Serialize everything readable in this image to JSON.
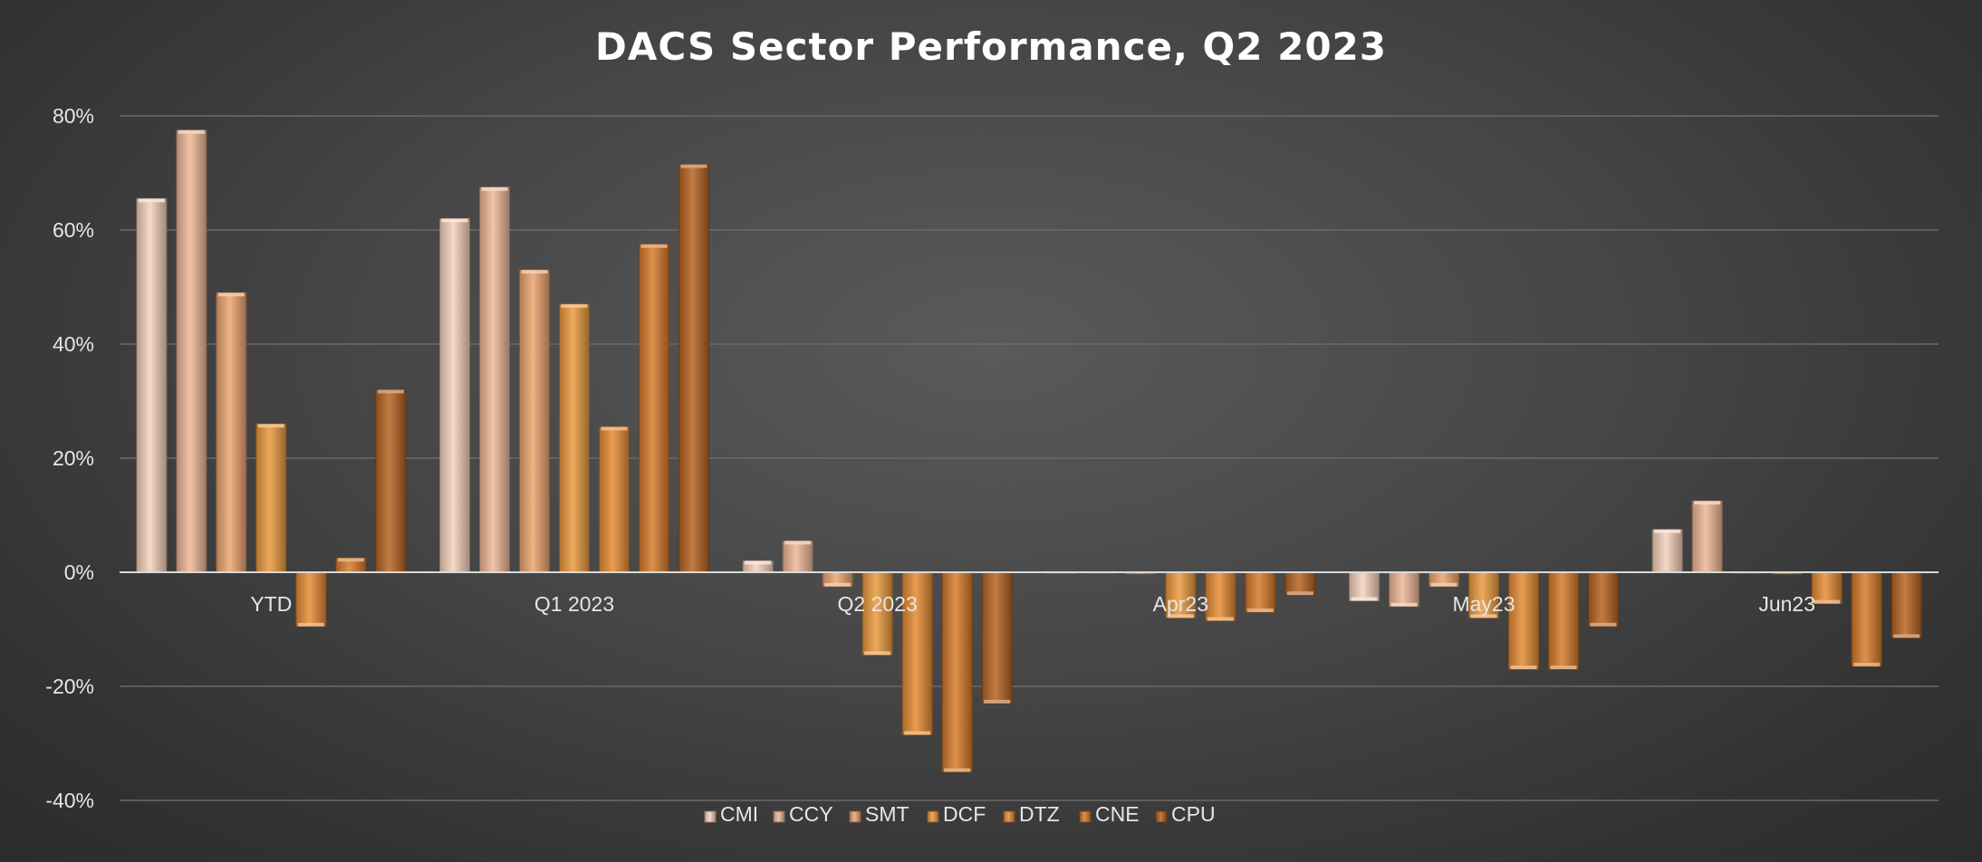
{
  "chart_data": {
    "type": "bar",
    "title": "DACS Sector Performance, Q2 2023",
    "xlabel": "",
    "ylabel": "",
    "ylim": [
      -40,
      80
    ],
    "yticks": [
      80,
      60,
      40,
      20,
      0,
      -20,
      -40
    ],
    "ytick_labels": [
      "80%",
      "60%",
      "40%",
      "20%",
      "0%",
      "-20%",
      "-40%"
    ],
    "grid": true,
    "legend_position": "bottom",
    "categories": [
      "YTD",
      "Q1 2023",
      "Q2 2023",
      "Apr23",
      "May23",
      "Jun23"
    ],
    "series": [
      {
        "name": "CMI",
        "color": "#f6d2bd",
        "values": [
          65.5,
          62,
          2,
          0,
          -5,
          7.5
        ]
      },
      {
        "name": "CCY",
        "color": "#efb898",
        "values": [
          77.5,
          67.5,
          5.5,
          0,
          -6,
          12.5
        ]
      },
      {
        "name": "SMT",
        "color": "#eda56f",
        "values": [
          49,
          53,
          -2.5,
          -0.3,
          -2.5,
          0
        ]
      },
      {
        "name": "DCF",
        "color": "#eb9b3f",
        "values": [
          26,
          47,
          -14.5,
          -8,
          -8,
          -0.3
        ]
      },
      {
        "name": "DTZ",
        "color": "#e58d35",
        "values": [
          -9.5,
          25.5,
          -28.5,
          -8.5,
          -17,
          -5.5
        ]
      },
      {
        "name": "CNE",
        "color": "#d77c2b",
        "values": [
          2.5,
          57.5,
          -35,
          -7,
          -17,
          -16.5
        ]
      },
      {
        "name": "CPU",
        "color": "#b76524",
        "values": [
          32,
          71.5,
          -23,
          -4,
          -9.5,
          -11.5
        ]
      }
    ]
  }
}
